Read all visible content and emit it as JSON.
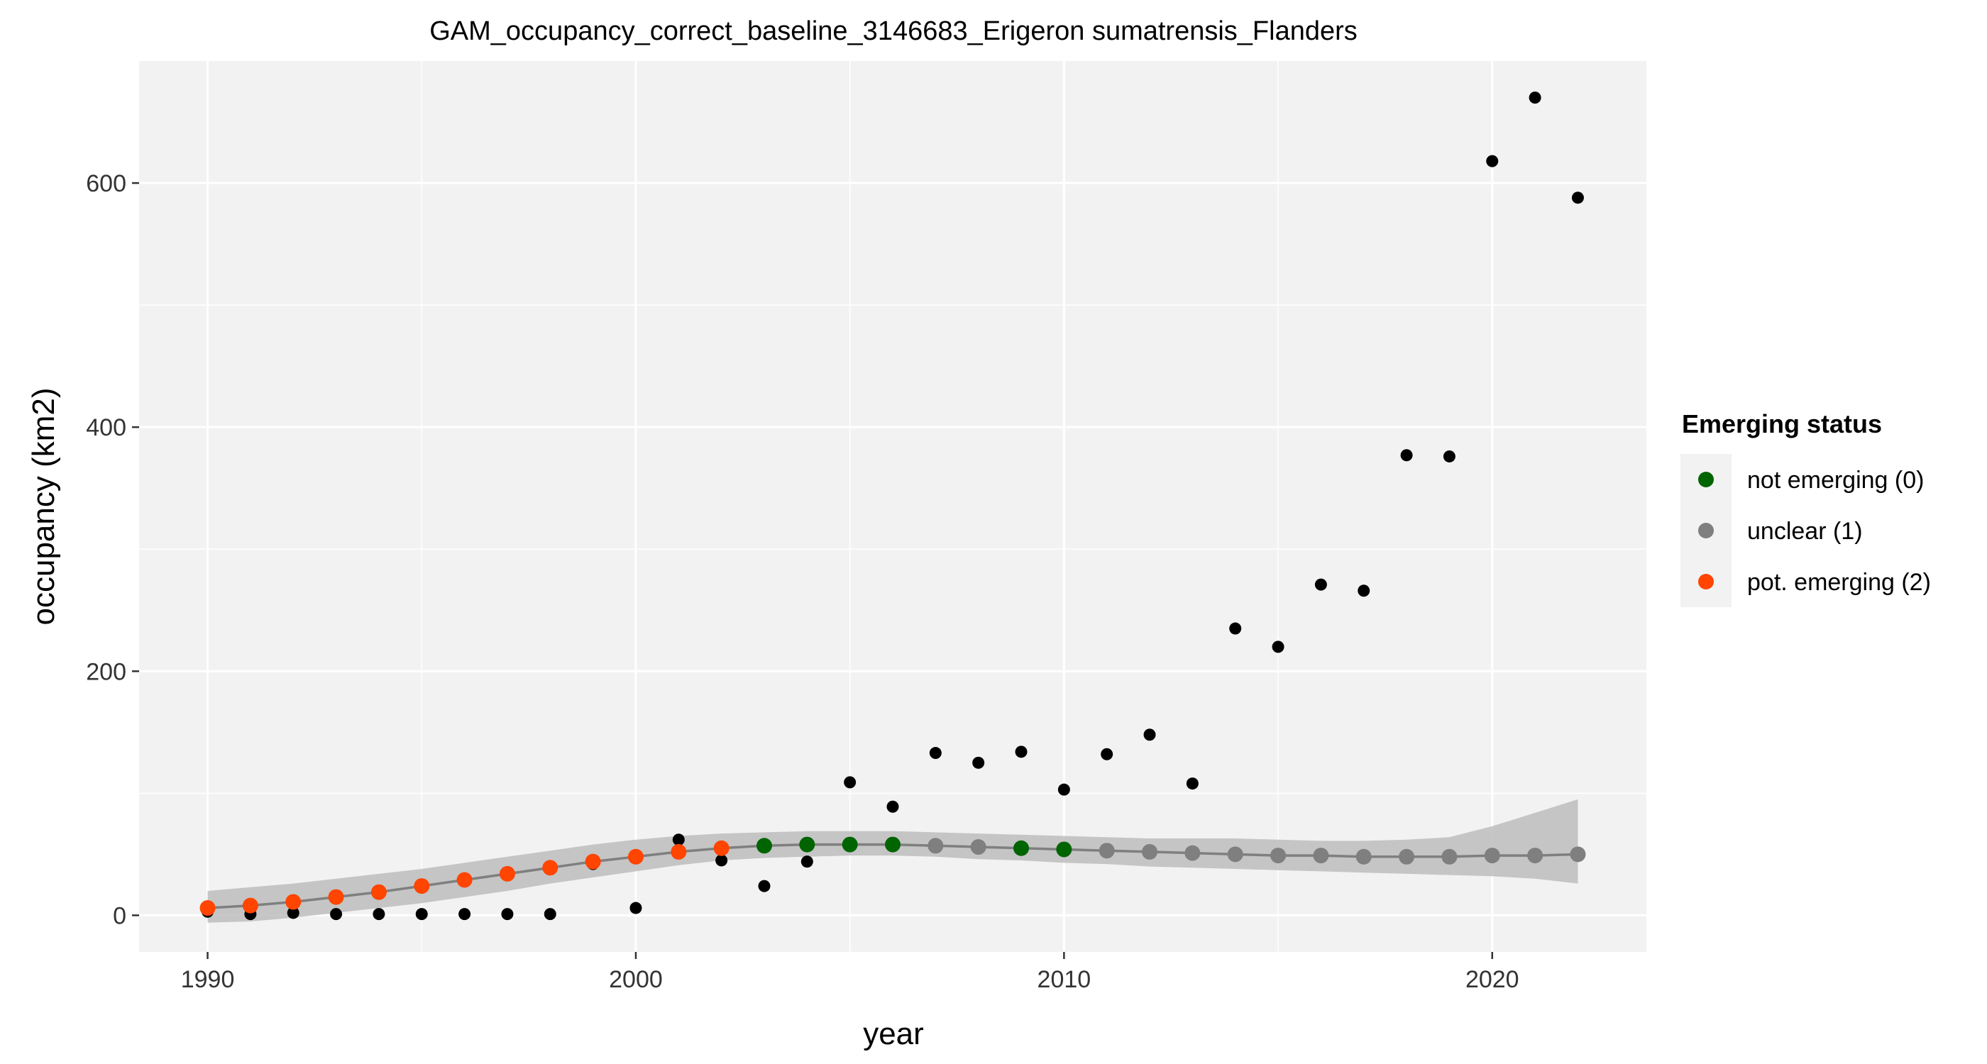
{
  "chart_data": {
    "type": "scatter",
    "title": "GAM_occupancy_correct_baseline_3146683_Erigeron sumatrensis_Flanders",
    "xlabel": "year",
    "ylabel": "occupancy (km2)",
    "xlim": [
      1988.4,
      2023.6
    ],
    "ylim": [
      -30,
      700
    ],
    "x_ticks": [
      1990,
      2000,
      2010,
      2020
    ],
    "y_ticks": [
      0,
      200,
      400,
      600
    ],
    "grid": true,
    "legend_position": "right",
    "observed": {
      "color": "#000000",
      "x": [
        1990,
        1991,
        1992,
        1993,
        1994,
        1995,
        1996,
        1997,
        1998,
        1999,
        2000,
        2001,
        2002,
        2003,
        2004,
        2005,
        2006,
        2007,
        2008,
        2009,
        2010,
        2011,
        2012,
        2013,
        2014,
        2015,
        2016,
        2017,
        2018,
        2019,
        2020,
        2021,
        2022
      ],
      "y": [
        3,
        1,
        2,
        1,
        1,
        1,
        1,
        1,
        1,
        42,
        6,
        62,
        45,
        24,
        44,
        109,
        89,
        133,
        125,
        134,
        103,
        132,
        148,
        108,
        235,
        220,
        271,
        266,
        377,
        376,
        618,
        670,
        588
      ]
    },
    "fit": {
      "line_color": "#7f7f7f",
      "band_color": "#bdbdbd",
      "x": [
        1990,
        1991,
        1992,
        1993,
        1994,
        1995,
        1996,
        1997,
        1998,
        1999,
        2000,
        2001,
        2002,
        2003,
        2004,
        2005,
        2006,
        2007,
        2008,
        2009,
        2010,
        2011,
        2012,
        2013,
        2014,
        2015,
        2016,
        2017,
        2018,
        2019,
        2020,
        2021,
        2022
      ],
      "y": [
        6,
        8,
        11,
        15,
        19,
        24,
        29,
        34,
        39,
        44,
        48,
        52,
        55,
        57,
        58,
        58,
        58,
        57,
        56,
        55,
        54,
        53,
        52,
        51,
        50,
        49,
        49,
        48,
        48,
        48,
        49,
        49,
        50
      ],
      "lower": [
        -6,
        -5,
        -2,
        2,
        6,
        10,
        15,
        20,
        26,
        31,
        36,
        41,
        45,
        47,
        48,
        49,
        49,
        48,
        46,
        45,
        43,
        42,
        40,
        39,
        38,
        37,
        36,
        35,
        34,
        33,
        32,
        30,
        26
      ],
      "upper": [
        20,
        23,
        26,
        30,
        34,
        38,
        43,
        48,
        53,
        58,
        62,
        65,
        67,
        68,
        69,
        69,
        69,
        68,
        67,
        66,
        65,
        64,
        63,
        63,
        63,
        62,
        61,
        61,
        62,
        64,
        73,
        84,
        95
      ],
      "status": [
        2,
        2,
        2,
        2,
        2,
        2,
        2,
        2,
        2,
        2,
        2,
        2,
        2,
        0,
        0,
        0,
        0,
        1,
        1,
        0,
        0,
        1,
        1,
        1,
        1,
        1,
        1,
        1,
        1,
        1,
        1,
        1,
        1
      ]
    },
    "legend": {
      "title": "Emerging status",
      "entries": [
        {
          "label": "not emerging (0)",
          "color": "#006400"
        },
        {
          "label": "unclear (1)",
          "color": "#7f7f7f"
        },
        {
          "label": "pot. emerging (2)",
          "color": "#ff4500"
        }
      ]
    }
  }
}
